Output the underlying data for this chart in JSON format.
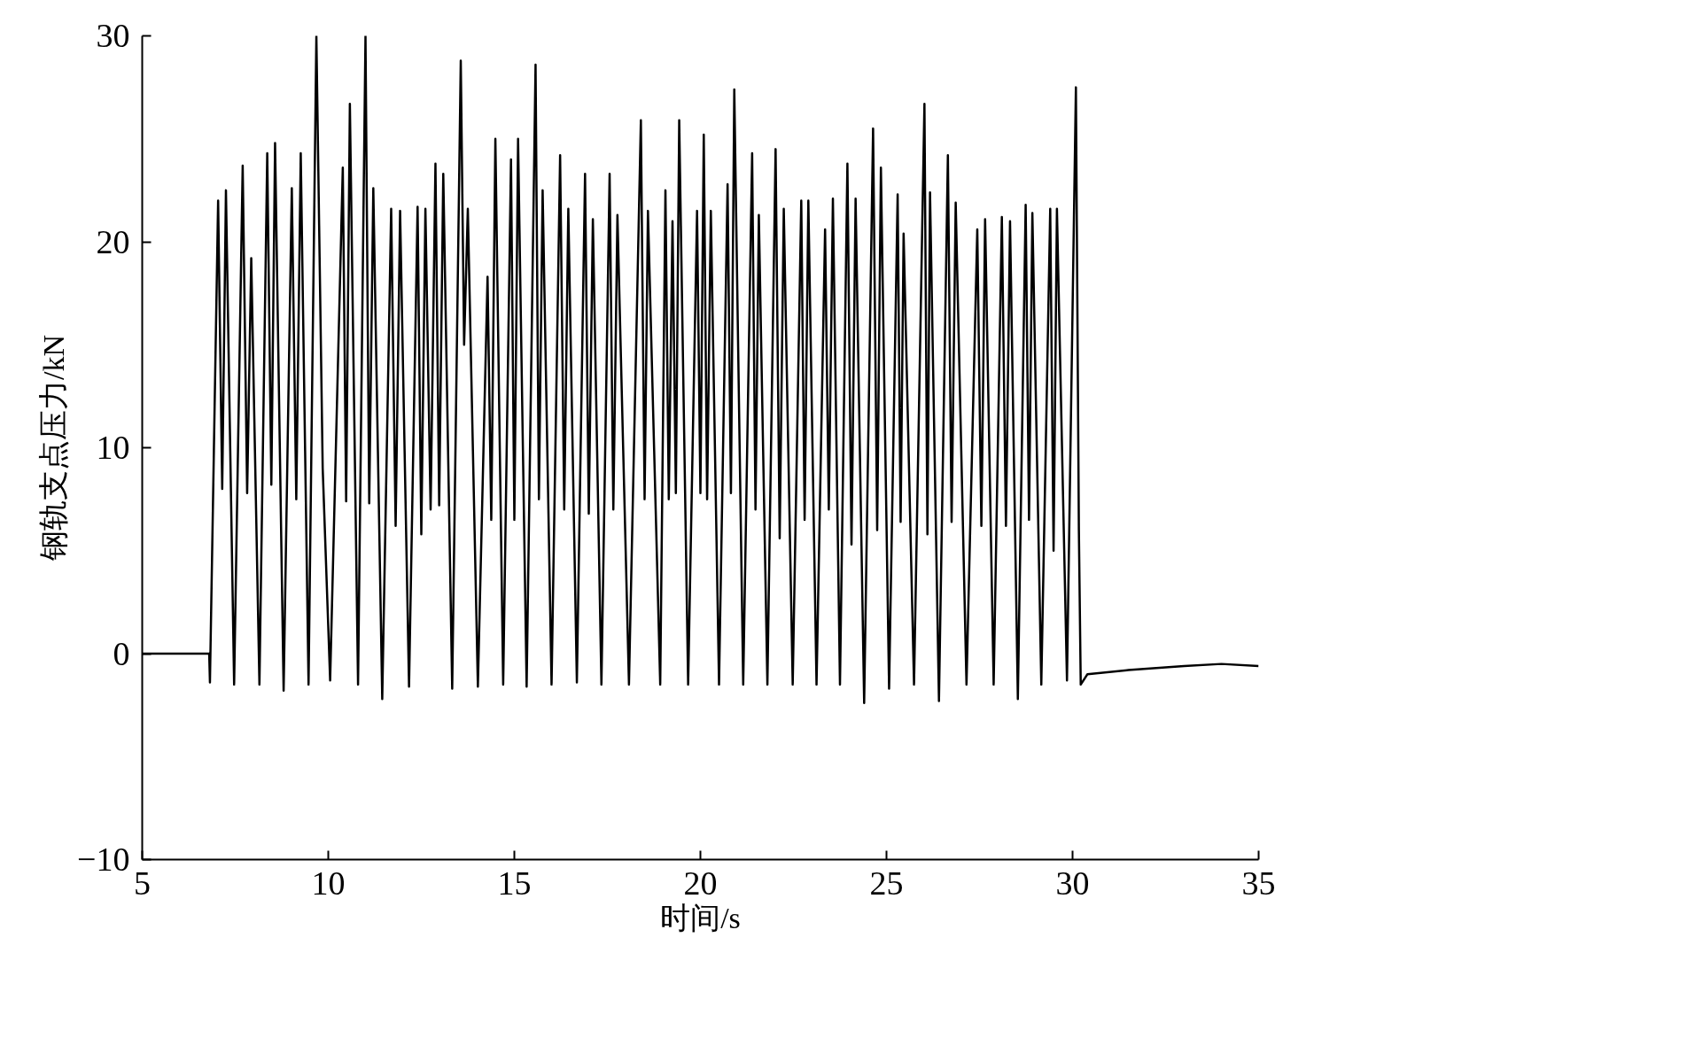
{
  "chart_data": {
    "type": "line",
    "xlabel": "时间/s",
    "ylabel": "钢轨支点压力/kN",
    "xlim": [
      5,
      35
    ],
    "xticks": [
      5,
      10,
      15,
      20,
      25,
      30,
      35
    ],
    "ylim": [
      -10,
      30
    ],
    "yticks": [
      {
        "value": -10,
        "label": "−10"
      },
      0,
      10,
      20,
      30
    ],
    "grid": false,
    "marker": "none",
    "line_style": "solid",
    "series": [
      {
        "color": "#000000",
        "x": [
          5,
          6.8,
          6.82,
          7.04,
          7.15,
          7.25,
          7.47,
          7.7,
          7.82,
          7.93,
          8.15,
          8.36,
          8.47,
          8.57,
          8.8,
          9.02,
          9.14,
          9.26,
          9.47,
          9.68,
          9.85,
          10.05,
          10.39,
          10.48,
          10.58,
          10.8,
          11.0,
          11.1,
          11.21,
          11.45,
          11.69,
          11.81,
          11.93,
          12.17,
          12.4,
          12.5,
          12.61,
          12.75,
          12.88,
          12.98,
          13.09,
          13.33,
          13.56,
          13.65,
          13.75,
          14.02,
          14.28,
          14.38,
          14.49,
          14.7,
          14.91,
          15.0,
          15.1,
          15.33,
          15.57,
          15.66,
          15.76,
          16.0,
          16.23,
          16.34,
          16.45,
          16.68,
          16.9,
          17.0,
          17.11,
          17.34,
          17.56,
          17.66,
          17.77,
          18.08,
          18.4,
          18.5,
          18.59,
          18.92,
          19.06,
          19.15,
          19.25,
          19.34,
          19.43,
          19.67,
          19.91,
          20.0,
          20.09,
          20.18,
          20.28,
          20.5,
          20.73,
          20.82,
          20.91,
          21.15,
          21.39,
          21.48,
          21.57,
          21.8,
          22.02,
          22.13,
          22.24,
          22.48,
          22.71,
          22.8,
          22.9,
          23.12,
          23.35,
          23.45,
          23.56,
          23.75,
          23.95,
          24.06,
          24.17,
          24.4,
          24.64,
          24.75,
          24.85,
          25.07,
          25.3,
          25.38,
          25.46,
          25.74,
          26.02,
          26.1,
          26.17,
          26.41,
          26.65,
          26.75,
          26.86,
          27.15,
          27.44,
          27.55,
          27.65,
          27.88,
          28.1,
          28.21,
          28.32,
          28.53,
          28.74,
          28.83,
          28.92,
          29.16,
          29.4,
          29.49,
          29.58,
          29.85,
          30.09,
          30.17,
          30.22,
          30.4,
          31.5,
          33,
          34,
          35
        ],
        "values": [
          0,
          0,
          -1.4,
          22,
          8,
          22.5,
          -1.5,
          23.7,
          7.8,
          19.2,
          -1.5,
          24.3,
          8.2,
          24.8,
          -1.8,
          22.6,
          7.5,
          24.3,
          -1.5,
          30,
          9,
          -1.3,
          23.6,
          7.4,
          26.7,
          -1.5,
          30,
          7.3,
          22.6,
          -2.2,
          21.6,
          6.2,
          21.5,
          -1.6,
          21.7,
          5.8,
          21.6,
          7,
          23.8,
          7.2,
          23.3,
          -1.7,
          28.8,
          15,
          21.6,
          -1.6,
          18.3,
          6.5,
          25,
          -1.5,
          24,
          6.5,
          25,
          -1.6,
          28.6,
          7.5,
          22.5,
          -1.5,
          24.2,
          7,
          21.6,
          -1.4,
          23.3,
          6.8,
          21.1,
          -1.5,
          23.3,
          7,
          21.3,
          -1.5,
          25.9,
          7.5,
          21.5,
          -1.5,
          22.5,
          7.5,
          21,
          7.8,
          25.9,
          -1.5,
          21.5,
          7.8,
          25.2,
          7.5,
          21.5,
          -1.5,
          22.8,
          7.8,
          27.4,
          -1.5,
          24.3,
          7,
          21.3,
          -1.5,
          24.5,
          5.6,
          21.6,
          -1.5,
          22,
          6.5,
          22,
          -1.5,
          20.6,
          7,
          22.1,
          -1.5,
          23.8,
          5.3,
          22.1,
          -2.4,
          25.5,
          6,
          23.6,
          -1.7,
          22.3,
          6.4,
          20.4,
          -1.5,
          26.7,
          5.8,
          22.4,
          -2.3,
          24.2,
          6.4,
          21.9,
          -1.5,
          20.6,
          6.2,
          21.1,
          -1.5,
          21.2,
          6.2,
          21,
          -2.2,
          21.8,
          6.5,
          21.4,
          -1.5,
          21.6,
          5,
          21.6,
          -1.3,
          27.5,
          6,
          -1.5,
          -1.0,
          -0.8,
          -0.6,
          -0.5,
          -0.6
        ]
      }
    ]
  }
}
